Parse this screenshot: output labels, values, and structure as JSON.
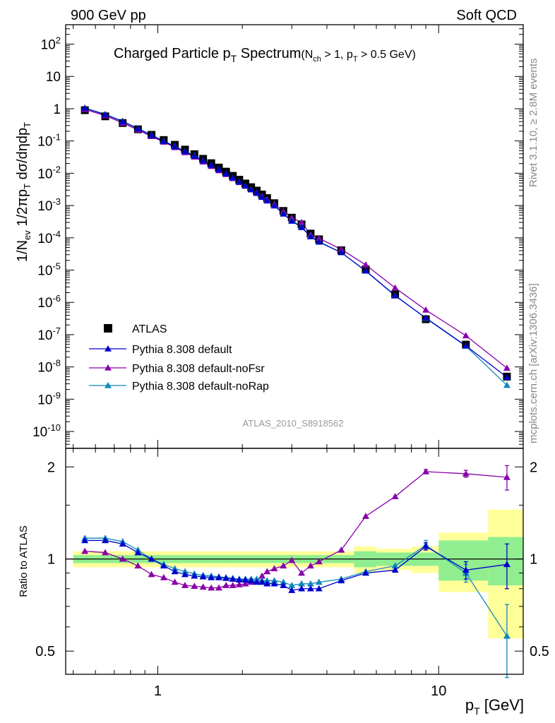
{
  "header": {
    "left": "900 GeV pp",
    "right": "Soft QCD"
  },
  "side_labels": {
    "rivet": "Rivet 3.1.10, ≥ 2.8M events",
    "mcplots": "mcplots.cern.ch [arXiv:1306.3436]"
  },
  "analysis_id": "ATLAS_2010_S8918562",
  "chart_data": [
    {
      "type": "scatter",
      "panel": "main",
      "title": {
        "main": "Charged Particle p",
        "main_sub": "T",
        "main_tail": " Spectrum",
        "cond_open": "(N",
        "cond_sub1": "ch",
        "cond_mid": " > 1, p",
        "cond_sub2": "T",
        "cond_tail": " > 0.5 GeV)"
      },
      "ylabel": {
        "p1": "1/N",
        "s1": "ev",
        "p2": " 1/2πp",
        "s2": "T",
        "p3": " dσ/dηdp",
        "s3": "T"
      },
      "xscale": "log",
      "yscale": "log",
      "xlim": [
        0.47,
        20
      ],
      "ylim": [
        3e-11,
        400
      ],
      "ytick_exponents": [
        -10,
        -9,
        -8,
        -7,
        -6,
        -5,
        -4,
        -3,
        -2,
        -1,
        0,
        1,
        2
      ],
      "ytick_labels": [
        "10^-10",
        "10^-9",
        "10^-8",
        "10^-7",
        "10^-6",
        "10^-5",
        "10^-4",
        "10^-3",
        "10^-2",
        "10^-1",
        "1",
        "10",
        "10^2"
      ],
      "legend_position": "bottom-left",
      "legend": [
        "ATLAS",
        "Pythia 8.308 default",
        "Pythia 8.308 default-noFsr",
        "Pythia 8.308 default-noRap"
      ],
      "x": [
        0.55,
        0.65,
        0.75,
        0.85,
        0.95,
        1.05,
        1.15,
        1.25,
        1.35,
        1.45,
        1.55,
        1.65,
        1.75,
        1.85,
        1.95,
        2.05,
        2.15,
        2.25,
        2.35,
        2.45,
        2.6,
        2.8,
        3.0,
        3.25,
        3.5,
        3.75,
        4.5,
        5.5,
        7.0,
        9.0,
        12.5,
        17.5
      ],
      "series": [
        {
          "name": "ATLAS",
          "color": "#000000",
          "marker": "square",
          "values": [
            0.9,
            0.58,
            0.36,
            0.23,
            0.155,
            0.107,
            0.076,
            0.054,
            0.039,
            0.028,
            0.0205,
            0.015,
            0.0112,
            0.0083,
            0.0063,
            0.0048,
            0.0037,
            0.0029,
            0.0022,
            0.0017,
            0.00118,
            0.00068,
            0.00042,
            0.00026,
            0.000135,
            9e-05,
            4.1e-05,
            1.05e-05,
            1.75e-06,
            3e-07,
            4.9e-08,
            5e-09
          ]
        },
        {
          "name": "Pythia 8.308 default",
          "color": "#0000cc",
          "marker": "triangle",
          "values": [
            1.04,
            0.66,
            0.4,
            0.24,
            0.15,
            0.098,
            0.067,
            0.047,
            0.034,
            0.0245,
            0.0178,
            0.0131,
            0.0097,
            0.0072,
            0.0054,
            0.0041,
            0.0031,
            0.0024,
            0.0018,
            0.0014,
            0.00098,
            0.00055,
            0.00033,
            0.00021,
            0.000109,
            7.4e-05,
            3.5e-05,
            9.4e-06,
            1.6e-06,
            3.3e-07,
            4.5e-08,
            4.8e-09
          ]
        },
        {
          "name": "Pythia 8.308 default-noFsr",
          "color": "#8800aa",
          "marker": "triangle",
          "values": [
            0.95,
            0.61,
            0.36,
            0.22,
            0.138,
            0.093,
            0.063,
            0.044,
            0.032,
            0.0226,
            0.0165,
            0.0121,
            0.0092,
            0.0069,
            0.0052,
            0.004,
            0.0031,
            0.0025,
            0.00195,
            0.00155,
            0.0011,
            0.00065,
            0.00042,
            0.0003,
            0.000125,
            9.6e-05,
            4.4e-05,
            1.45e-05,
            2.8e-06,
            5.8e-07,
            9.3e-08,
            9.2e-09
          ]
        },
        {
          "name": "Pythia 8.308 default-noRap",
          "color": "#1188bb",
          "marker": "triangle",
          "values": [
            1.05,
            0.67,
            0.41,
            0.245,
            0.153,
            0.101,
            0.069,
            0.048,
            0.035,
            0.0249,
            0.018,
            0.0132,
            0.0097,
            0.0072,
            0.0054,
            0.0041,
            0.0032,
            0.0024,
            0.00185,
            0.00145,
            0.001,
            0.00057,
            0.00035,
            0.00022,
            0.000113,
            7.6e-05,
            3.5e-05,
            9.5e-06,
            1.65e-06,
            3.2e-07,
            4.4e-08,
            2.7e-09
          ]
        }
      ]
    },
    {
      "type": "scatter",
      "panel": "ratio",
      "ylabel": "Ratio to ATLAS",
      "xlabel": {
        "p": "p",
        "s": "T",
        "tail": "  [GeV]"
      },
      "xscale": "log",
      "xlim": [
        0.47,
        20
      ],
      "ylim": [
        0.42,
        2.3
      ],
      "xticks": [
        1,
        10
      ],
      "xtick_labels": [
        "1",
        "10"
      ],
      "yticks": [
        0.5,
        1,
        2
      ],
      "ytick_labels": [
        "0.5",
        "1",
        "2"
      ],
      "reference_line": 1,
      "x": [
        0.55,
        0.65,
        0.75,
        0.85,
        0.95,
        1.05,
        1.15,
        1.25,
        1.35,
        1.45,
        1.55,
        1.65,
        1.75,
        1.85,
        1.95,
        2.05,
        2.15,
        2.25,
        2.35,
        2.45,
        2.6,
        2.8,
        3.0,
        3.25,
        3.5,
        3.75,
        4.5,
        5.5,
        7.0,
        9.0,
        12.5,
        17.5
      ],
      "bands": {
        "bin_edges": [
          0.5,
          0.6,
          0.7,
          0.8,
          0.9,
          1.0,
          1.1,
          1.2,
          1.3,
          1.4,
          1.5,
          1.6,
          1.7,
          1.8,
          1.9,
          2.0,
          2.1,
          2.2,
          2.3,
          2.4,
          2.5,
          2.7,
          2.9,
          3.1,
          3.4,
          3.6,
          4.0,
          5.0,
          6.0,
          8.0,
          10.0,
          15.0,
          20.0
        ],
        "outer_half_width": [
          0.06,
          0.06,
          0.06,
          0.06,
          0.06,
          0.06,
          0.06,
          0.06,
          0.06,
          0.06,
          0.06,
          0.06,
          0.06,
          0.06,
          0.06,
          0.06,
          0.06,
          0.06,
          0.06,
          0.06,
          0.06,
          0.06,
          0.06,
          0.06,
          0.06,
          0.06,
          0.06,
          0.1,
          0.08,
          0.1,
          0.22,
          0.45,
          0.52
        ],
        "inner_half_width": [
          0.03,
          0.03,
          0.03,
          0.03,
          0.03,
          0.03,
          0.03,
          0.03,
          0.03,
          0.03,
          0.03,
          0.03,
          0.03,
          0.03,
          0.03,
          0.03,
          0.03,
          0.03,
          0.03,
          0.03,
          0.03,
          0.03,
          0.03,
          0.03,
          0.03,
          0.03,
          0.03,
          0.06,
          0.05,
          0.05,
          0.15,
          0.18,
          0.22
        ],
        "outer_color": "#ffff99",
        "inner_color": "#90ee90"
      },
      "series": [
        {
          "name": "Pythia 8.308 default",
          "color": "#0000cc",
          "values": [
            1.15,
            1.15,
            1.12,
            1.05,
            1.0,
            0.95,
            0.91,
            0.89,
            0.88,
            0.875,
            0.87,
            0.87,
            0.865,
            0.86,
            0.855,
            0.855,
            0.85,
            0.84,
            0.84,
            0.83,
            0.83,
            0.82,
            0.79,
            0.8,
            0.8,
            0.8,
            0.85,
            0.9,
            0.92,
            1.1,
            0.92,
            0.96
          ],
          "errors": [
            0,
            0,
            0,
            0,
            0,
            0,
            0,
            0,
            0,
            0,
            0,
            0,
            0,
            0,
            0,
            0,
            0,
            0,
            0,
            0,
            0,
            0,
            0,
            0,
            0,
            0,
            0,
            0,
            0,
            0.03,
            0.06,
            0.16
          ]
        },
        {
          "name": "Pythia 8.308 default-noFsr",
          "color": "#8800aa",
          "values": [
            1.06,
            1.05,
            1.0,
            0.95,
            0.89,
            0.87,
            0.84,
            0.82,
            0.815,
            0.81,
            0.805,
            0.805,
            0.82,
            0.82,
            0.825,
            0.83,
            0.84,
            0.85,
            0.88,
            0.91,
            0.93,
            0.95,
            0.99,
            0.9,
            0.95,
            0.98,
            1.07,
            1.38,
            1.6,
            1.93,
            1.9,
            1.85
          ],
          "errors": [
            0,
            0,
            0,
            0,
            0,
            0,
            0,
            0,
            0,
            0,
            0,
            0,
            0,
            0,
            0,
            0,
            0,
            0,
            0,
            0,
            0,
            0,
            0,
            0,
            0,
            0,
            0,
            0,
            0,
            0.03,
            0.05,
            0.17
          ]
        },
        {
          "name": "Pythia 8.308 default-noRap",
          "color": "#1188bb",
          "values": [
            1.17,
            1.17,
            1.14,
            1.07,
            1.0,
            0.96,
            0.93,
            0.91,
            0.895,
            0.885,
            0.88,
            0.875,
            0.87,
            0.865,
            0.86,
            0.86,
            0.86,
            0.86,
            0.85,
            0.85,
            0.85,
            0.84,
            0.82,
            0.83,
            0.83,
            0.84,
            0.86,
            0.91,
            0.95,
            1.11,
            0.9,
            0.56
          ],
          "errors": [
            0,
            0,
            0,
            0,
            0,
            0,
            0,
            0,
            0,
            0,
            0,
            0,
            0,
            0,
            0,
            0,
            0,
            0,
            0,
            0,
            0,
            0,
            0,
            0,
            0,
            0,
            0,
            0,
            0,
            0.04,
            0.06,
            0.15
          ]
        }
      ]
    }
  ]
}
